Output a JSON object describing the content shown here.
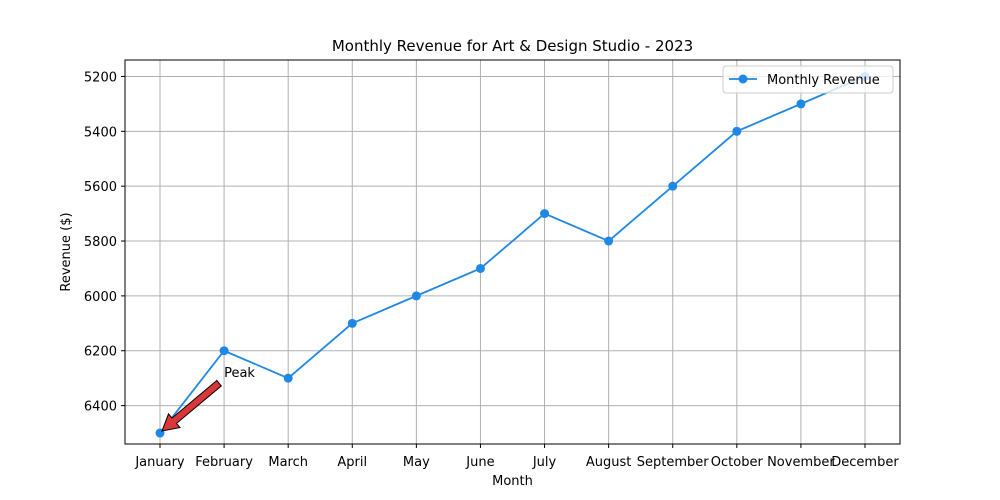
{
  "chart_data": {
    "type": "line",
    "title": "Monthly Revenue for Art & Design Studio - 2023",
    "xlabel": "Month",
    "ylabel": "Revenue ($)",
    "categories": [
      "January",
      "February",
      "March",
      "April",
      "May",
      "June",
      "July",
      "August",
      "September",
      "October",
      "November",
      "December"
    ],
    "series": [
      {
        "name": "Monthly Revenue",
        "color": "#1f88e5",
        "values": [
          6500,
          6200,
          6300,
          6100,
          6000,
          5900,
          5700,
          5800,
          5600,
          5400,
          5300,
          5200
        ]
      }
    ],
    "ylim": [
      6540,
      5140
    ],
    "y_inverted": true,
    "yticks": [
      5200,
      5400,
      5600,
      5800,
      6000,
      6200,
      6400
    ],
    "grid": true,
    "legend_position": "top-right",
    "annotation": {
      "text": "Peak",
      "category": "January",
      "value": 6500,
      "text_category": "February",
      "text_value": 6300,
      "arrow_color": "#d9373a"
    }
  }
}
